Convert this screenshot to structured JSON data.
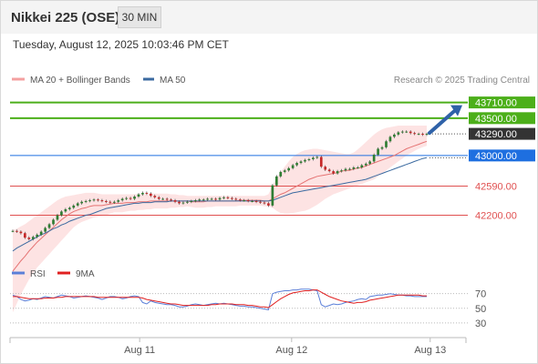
{
  "header": {
    "title": "Nikkei 225 (OSE)",
    "timeframe": "30 MIN",
    "datetime": "Tuesday, August 12, 2025 10:03:46 PM CET"
  },
  "colors": {
    "candle_up": "#2e7d32",
    "candle_down": "#c62828",
    "ma20": "#e57373",
    "bollinger_fill": "#fde3e3",
    "ma50": "#3b6aa0",
    "green_level": "#4caf1a",
    "blue_level": "#1e6fe0",
    "red_level": "#e05050",
    "current_price_bg": "#333333",
    "arrow": "#2f62a8",
    "rsi": "#5b7fd8",
    "rsi_ma": "#e02020"
  },
  "chart_data": [
    {
      "type": "candlestick",
      "legend": [
        {
          "name": "MA 20 + Bollinger Bands",
          "color": "#f4a0a0"
        },
        {
          "name": "MA 50",
          "color": "#3b6aa0"
        }
      ],
      "credit": "Research © 2025 Trading Central",
      "x_ticks": [
        "Aug 11",
        "Aug 12",
        "Aug 13"
      ],
      "x_tick_index": [
        29,
        63,
        94
      ],
      "x_range": [
        0,
        102
      ],
      "y_range": [
        41780,
        43900
      ],
      "levels": [
        {
          "label": "43710.00",
          "value": 43710,
          "kind": "resistance"
        },
        {
          "label": "43500.00",
          "value": 43500,
          "kind": "resistance"
        },
        {
          "label": "43000.00",
          "value": 43000,
          "kind": "pivot"
        },
        {
          "label": "42590.00",
          "value": 42590,
          "kind": "support"
        },
        {
          "label": "42200.00",
          "value": 42200,
          "kind": "support"
        }
      ],
      "current_price": {
        "label": "43290.00",
        "value": 43290
      },
      "close": [
        41990,
        41980,
        41960,
        41900,
        41880,
        41910,
        41940,
        41980,
        42030,
        42080,
        42140,
        42200,
        42250,
        42280,
        42300,
        42330,
        42360,
        42380,
        42390,
        42400,
        42410,
        42400,
        42390,
        42380,
        42370,
        42380,
        42400,
        42420,
        42430,
        42420,
        42450,
        42480,
        42500,
        42490,
        42460,
        42440,
        42420,
        42420,
        42410,
        42400,
        42380,
        42360,
        42370,
        42380,
        42390,
        42400,
        42410,
        42410,
        42420,
        42420,
        42410,
        42430,
        42440,
        42430,
        42420,
        42410,
        42400,
        42400,
        42390,
        42390,
        42380,
        42370,
        42360,
        42330,
        42600,
        42720,
        42780,
        42800,
        42830,
        42870,
        42900,
        42920,
        42940,
        42950,
        42970,
        42980,
        42850,
        42810,
        42790,
        42760,
        42790,
        42800,
        42820,
        42820,
        42840,
        42840,
        42870,
        42890,
        42920,
        43010,
        43090,
        43110,
        43190,
        43250,
        43280,
        43310,
        43320,
        43320,
        43300,
        43290,
        43290,
        43280,
        43290
      ],
      "ma20": [
        41450,
        41520,
        41590,
        41650,
        41720,
        41780,
        41840,
        41890,
        41940,
        41990,
        42040,
        42090,
        42140,
        42180,
        42220,
        42250,
        42270,
        42290,
        42300,
        42320,
        42330,
        42330,
        42330,
        42340,
        42350,
        42360,
        42360,
        42360,
        42370,
        42370,
        42370,
        42380,
        42380,
        42380,
        42390,
        42390,
        42390,
        42390,
        42390,
        42390,
        42390,
        42390,
        42390,
        42390,
        42380,
        42380,
        42380,
        42380,
        42390,
        42390,
        42390,
        42390,
        42390,
        42390,
        42390,
        42390,
        42400,
        42400,
        42400,
        42400,
        42400,
        42400,
        42390,
        42390,
        42420,
        42450,
        42480,
        42500,
        42530,
        42560,
        42590,
        42620,
        42650,
        42680,
        42700,
        42720,
        42730,
        42740,
        42750,
        42760,
        42770,
        42790,
        42800,
        42800,
        42820,
        42830,
        42840,
        42860,
        42880,
        42900,
        42920,
        42940,
        42960,
        42980,
        43000,
        43030,
        43060,
        43090,
        43110,
        43130,
        43150,
        43170,
        43190
      ],
      "bb_upper": [
        42000,
        42020,
        42050,
        42080,
        42120,
        42160,
        42200,
        42240,
        42280,
        42320,
        42360,
        42400,
        42430,
        42450,
        42460,
        42470,
        42480,
        42490,
        42500,
        42500,
        42500,
        42490,
        42480,
        42480,
        42480,
        42480,
        42480,
        42480,
        42480,
        42480,
        42480,
        42480,
        42480,
        42480,
        42490,
        42490,
        42490,
        42490,
        42490,
        42480,
        42480,
        42470,
        42470,
        42460,
        42460,
        42460,
        42460,
        42460,
        42460,
        42460,
        42460,
        42460,
        42460,
        42460,
        42460,
        42460,
        42460,
        42460,
        42460,
        42460,
        42460,
        42460,
        42460,
        42480,
        42600,
        42700,
        42780,
        42850,
        42920,
        42980,
        43020,
        43050,
        43070,
        43080,
        43090,
        43090,
        43080,
        43070,
        43060,
        43050,
        43040,
        43030,
        43020,
        43020,
        43040,
        43080,
        43130,
        43180,
        43230,
        43280,
        43320,
        43350,
        43370,
        43380,
        43390,
        43400,
        43400,
        43400,
        43400,
        43400,
        43400,
        43400,
        43400
      ],
      "bb_lower": [
        40900,
        41020,
        41140,
        41240,
        41340,
        41420,
        41500,
        41560,
        41620,
        41680,
        41740,
        41800,
        41860,
        41920,
        41980,
        42040,
        42080,
        42110,
        42130,
        42150,
        42170,
        42180,
        42190,
        42200,
        42220,
        42240,
        42240,
        42240,
        42250,
        42260,
        42260,
        42270,
        42270,
        42280,
        42280,
        42290,
        42290,
        42290,
        42290,
        42300,
        42300,
        42310,
        42310,
        42320,
        42310,
        42300,
        42300,
        42300,
        42310,
        42310,
        42320,
        42320,
        42320,
        42320,
        42320,
        42320,
        42330,
        42330,
        42330,
        42330,
        42330,
        42330,
        42320,
        42320,
        42300,
        42260,
        42230,
        42220,
        42220,
        42230,
        42240,
        42250,
        42260,
        42280,
        42310,
        42340,
        42380,
        42420,
        42450,
        42480,
        42500,
        42520,
        42540,
        42560,
        42580,
        42600,
        42620,
        42640,
        42660,
        42680,
        42720,
        42760,
        42800,
        42840,
        42880,
        42920,
        42960,
        43000,
        43030,
        43060,
        43090,
        43110,
        43130
      ],
      "ma50": [
        41720,
        41760,
        41790,
        41820,
        41850,
        41880,
        41910,
        41940,
        41960,
        41990,
        42020,
        42040,
        42070,
        42090,
        42120,
        42140,
        42160,
        42180,
        42200,
        42210,
        42230,
        42250,
        42270,
        42290,
        42300,
        42310,
        42320,
        42330,
        42340,
        42350,
        42360,
        42360,
        42370,
        42370,
        42370,
        42380,
        42380,
        42380,
        42380,
        42390,
        42390,
        42390,
        42390,
        42390,
        42390,
        42390,
        42390,
        42390,
        42390,
        42390,
        42390,
        42390,
        42390,
        42390,
        42390,
        42390,
        42390,
        42390,
        42390,
        42390,
        42390,
        42390,
        42390,
        42390,
        42400,
        42420,
        42440,
        42460,
        42480,
        42500,
        42510,
        42520,
        42530,
        42540,
        42550,
        42560,
        42570,
        42580,
        42590,
        42600,
        42610,
        42620,
        42630,
        42640,
        42650,
        42660,
        42670,
        42680,
        42700,
        42720,
        42740,
        42760,
        42780,
        42800,
        42820,
        42840,
        42860,
        42880,
        42900,
        42920,
        42940,
        42960,
        42970
      ]
    },
    {
      "type": "line",
      "legend": [
        {
          "name": "RSI",
          "color": "#5b7fd8"
        },
        {
          "name": "9MA",
          "color": "#e02020"
        }
      ],
      "y_ticks": [
        70,
        50,
        30
      ],
      "y_range": [
        20,
        82
      ],
      "rsi": [
        68,
        66,
        62,
        60,
        61,
        63,
        62,
        64,
        66,
        65,
        64,
        66,
        68,
        67,
        66,
        64,
        65,
        66,
        67,
        66,
        65,
        64,
        62,
        64,
        66,
        66,
        65,
        63,
        64,
        66,
        67,
        66,
        58,
        56,
        60,
        58,
        57,
        56,
        55,
        55,
        54,
        52,
        52,
        53,
        55,
        56,
        55,
        54,
        55,
        56,
        57,
        56,
        57,
        56,
        55,
        54,
        53,
        53,
        52,
        52,
        51,
        50,
        49,
        48,
        70,
        72,
        73,
        74,
        74,
        75,
        75,
        76,
        76,
        76,
        75,
        74,
        55,
        52,
        54,
        56,
        55,
        56,
        58,
        59,
        60,
        62,
        63,
        62,
        66,
        67,
        68,
        68,
        69,
        70,
        69,
        68,
        68,
        67,
        67,
        66,
        66,
        66,
        66
      ],
      "rsi_ma": [
        66,
        66,
        65,
        64,
        63,
        63,
        63,
        63,
        64,
        64,
        64,
        65,
        65,
        66,
        66,
        66,
        66,
        66,
        66,
        66,
        66,
        65,
        65,
        65,
        65,
        65,
        65,
        65,
        65,
        65,
        65,
        65,
        64,
        62,
        61,
        60,
        59,
        58,
        57,
        56,
        56,
        55,
        54,
        54,
        54,
        54,
        54,
        54,
        54,
        55,
        55,
        56,
        56,
        56,
        56,
        55,
        55,
        55,
        54,
        54,
        53,
        52,
        52,
        51,
        55,
        59,
        63,
        66,
        69,
        71,
        72,
        73,
        74,
        74,
        75,
        75,
        72,
        69,
        66,
        64,
        62,
        60,
        59,
        58,
        57,
        58,
        58,
        59,
        61,
        62,
        63,
        64,
        65,
        66,
        67,
        68,
        68,
        68,
        68,
        68,
        68,
        67,
        67
      ]
    }
  ]
}
